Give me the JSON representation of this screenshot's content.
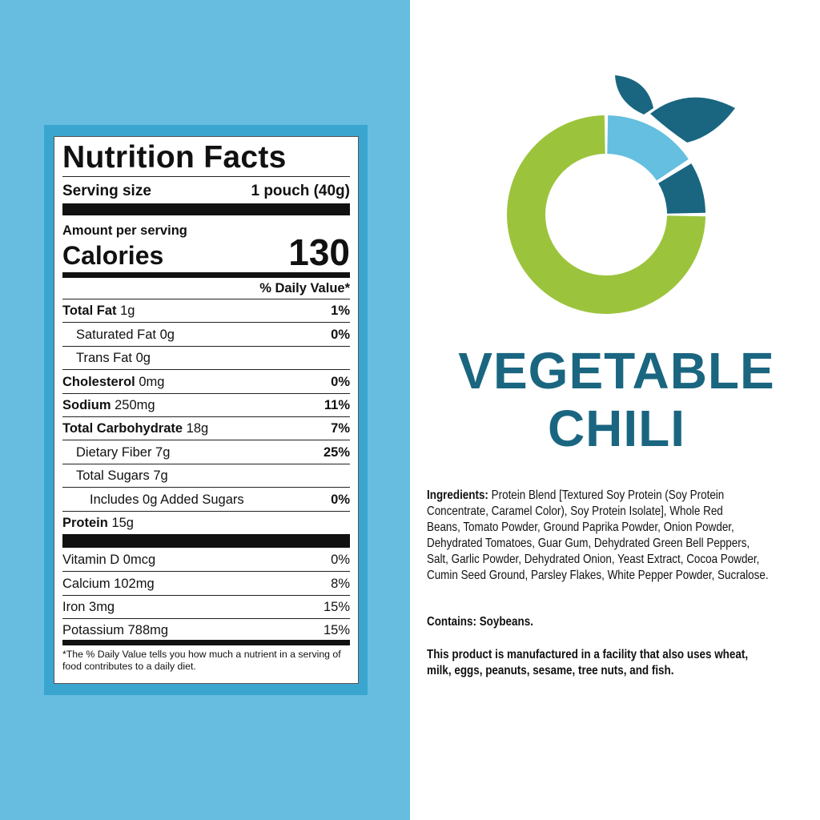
{
  "colors": {
    "left_bg": "#66bde0",
    "frame": "#3aa6cf",
    "brand": "#1a6680",
    "green": "#9bc43c",
    "light_blue": "#64bfe0",
    "dark_teal": "#1a6680"
  },
  "logo": {
    "icon": "donut-leaf-logo"
  },
  "nutrition": {
    "title": "Nutrition Facts",
    "serving_label": "Serving size",
    "serving_value": "1 pouch (40g)",
    "amount_label": "Amount per serving",
    "calories_label": "Calories",
    "calories_value": "130",
    "dv_header": "% Daily Value*",
    "rows": [
      {
        "name": "Total Fat",
        "amount": "1g",
        "dv": "1%"
      },
      {
        "name": "Saturated Fat",
        "amount": "0g",
        "dv": "0%"
      },
      {
        "name": "Trans Fat",
        "amount": "0g",
        "dv": ""
      },
      {
        "name": "Cholesterol",
        "amount": "0mg",
        "dv": "0%"
      },
      {
        "name": "Sodium",
        "amount": "250mg",
        "dv": "11%"
      },
      {
        "name": "Total Carbohydrate",
        "amount": "18g",
        "dv": "7%"
      },
      {
        "name": "Dietary Fiber",
        "amount": "7g",
        "dv": "25%"
      },
      {
        "name": "Total Sugars",
        "amount": "7g",
        "dv": ""
      },
      {
        "name": "Includes 0g Added Sugars",
        "amount": "",
        "dv": "0%"
      },
      {
        "name": "Protein",
        "amount": "15g",
        "dv": ""
      }
    ],
    "vitamins": [
      {
        "name": "Vitamin D 0mcg",
        "dv": "0%"
      },
      {
        "name": "Calcium 102mg",
        "dv": "8%"
      },
      {
        "name": "Iron 3mg",
        "dv": "15%"
      },
      {
        "name": "Potassium 788mg",
        "dv": "15%"
      }
    ],
    "footnote": "*The % Daily Value tells you how much a nutrient in a serving of food contributes to a daily diet."
  },
  "product": {
    "line1": "VEGETABLE",
    "line2": "CHILI"
  },
  "ingredients": {
    "label": "Ingredients:",
    "lines": [
      "Protein Blend [Textured Soy Protein (Soy Protein",
      "Concentrate, Caramel Color), Soy Protein Isolate], Whole Red",
      "Beans, Tomato Powder, Ground Paprika Powder, Onion Powder,",
      "Dehydrated Tomatoes, Guar Gum, Dehydrated Green Bell Peppers,",
      "Salt, Garlic Powder, Dehydrated Onion, Yeast Extract, Cocoa Powder,",
      "Cumin Seed Ground, Parsley Flakes, White Pepper Powder, Sucralose."
    ]
  },
  "contains": "Contains: Soybeans.",
  "facility": [
    "This product is manufactured in a facility that also uses wheat,",
    "milk, eggs, peanuts, sesame, tree nuts, and fish."
  ]
}
